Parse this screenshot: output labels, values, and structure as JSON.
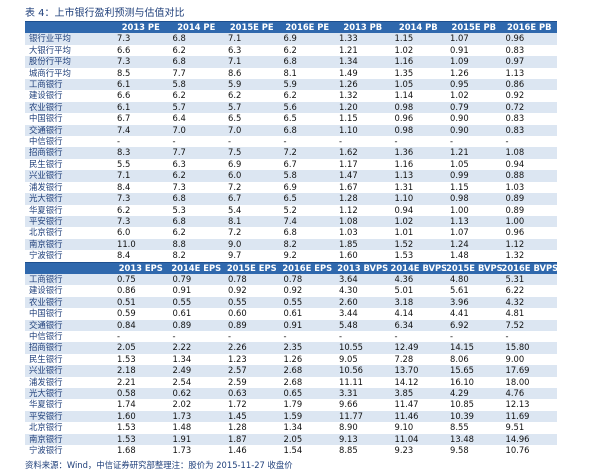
{
  "title": "表 4：上市银行盈利预测与估值对比",
  "tables": [
    {
      "header": [
        "",
        "2013 PE",
        "2014 PE",
        "2015E PE",
        "2016E PE",
        "2013 PB",
        "2014 PB",
        "2015E PB",
        "2016E PB"
      ],
      "rows": [
        [
          "银行业平均",
          "7.3",
          "6.8",
          "7.1",
          "6.9",
          "1.33",
          "1.15",
          "1.07",
          "0.96"
        ],
        [
          "大银行平均",
          "6.6",
          "6.2",
          "6.3",
          "6.2",
          "1.21",
          "1.02",
          "0.91",
          "0.83"
        ],
        [
          "股份行平均",
          "7.3",
          "6.8",
          "7.1",
          "6.8",
          "1.34",
          "1.16",
          "1.09",
          "0.97"
        ],
        [
          "城商行平均",
          "8.5",
          "7.7",
          "8.6",
          "8.1",
          "1.49",
          "1.35",
          "1.26",
          "1.13"
        ],
        [
          "工商银行",
          "6.1",
          "5.8",
          "5.9",
          "5.9",
          "1.26",
          "1.05",
          "0.95",
          "0.86"
        ],
        [
          "建设银行",
          "6.6",
          "6.2",
          "6.2",
          "6.2",
          "1.32",
          "1.14",
          "1.02",
          "0.92"
        ],
        [
          "农业银行",
          "6.1",
          "5.7",
          "5.7",
          "5.6",
          "1.20",
          "0.98",
          "0.79",
          "0.72"
        ],
        [
          "中国银行",
          "6.7",
          "6.4",
          "6.5",
          "6.5",
          "1.15",
          "0.96",
          "0.90",
          "0.83"
        ],
        [
          "交通银行",
          "7.4",
          "7.0",
          "7.0",
          "6.8",
          "1.10",
          "0.98",
          "0.90",
          "0.83"
        ],
        [
          "中信银行",
          "-",
          "-",
          "-",
          "-",
          "-",
          "-",
          "-",
          "-"
        ],
        [
          "招商银行",
          "8.3",
          "7.7",
          "7.5",
          "7.2",
          "1.62",
          "1.36",
          "1.21",
          "1.08"
        ],
        [
          "民生银行",
          "5.5",
          "6.3",
          "6.9",
          "6.7",
          "1.17",
          "1.16",
          "1.05",
          "0.94"
        ],
        [
          "兴业银行",
          "7.1",
          "6.2",
          "6.0",
          "5.8",
          "1.47",
          "1.13",
          "0.99",
          "0.88"
        ],
        [
          "浦发银行",
          "8.4",
          "7.3",
          "7.2",
          "6.9",
          "1.67",
          "1.31",
          "1.15",
          "1.03"
        ],
        [
          "光大银行",
          "7.3",
          "6.8",
          "6.7",
          "6.5",
          "1.28",
          "1.10",
          "0.98",
          "0.89"
        ],
        [
          "华夏银行",
          "6.2",
          "5.3",
          "5.4",
          "5.2",
          "1.12",
          "0.94",
          "1.00",
          "0.89"
        ],
        [
          "平安银行",
          "7.3",
          "6.8",
          "8.1",
          "7.4",
          "1.08",
          "1.02",
          "1.13",
          "1.00"
        ],
        [
          "北京银行",
          "6.0",
          "6.2",
          "7.2",
          "6.8",
          "1.03",
          "1.01",
          "1.07",
          "0.96"
        ],
        [
          "南京银行",
          "11.0",
          "8.8",
          "9.0",
          "8.2",
          "1.85",
          "1.52",
          "1.24",
          "1.12"
        ],
        [
          "宁波银行",
          "8.4",
          "8.2",
          "9.7",
          "9.2",
          "1.60",
          "1.53",
          "1.48",
          "1.32"
        ]
      ]
    },
    {
      "header": [
        "",
        "2013 EPS",
        "2014E EPS",
        "2015E EPS",
        "2016E EPS",
        "2013 BVPS",
        "2014E BVPS",
        "2015E BVPS",
        "2016E BVPS"
      ],
      "rows": [
        [
          "工商银行",
          "0.75",
          "0.79",
          "0.78",
          "0.78",
          "3.64",
          "4.36",
          "4.80",
          "5.31"
        ],
        [
          "建设银行",
          "0.86",
          "0.91",
          "0.92",
          "0.92",
          "4.30",
          "5.01",
          "5.61",
          "6.22"
        ],
        [
          "农业银行",
          "0.51",
          "0.55",
          "0.55",
          "0.55",
          "2.60",
          "3.18",
          "3.96",
          "4.32"
        ],
        [
          "中国银行",
          "0.59",
          "0.61",
          "0.60",
          "0.61",
          "3.44",
          "4.14",
          "4.41",
          "4.81"
        ],
        [
          "交通银行",
          "0.84",
          "0.89",
          "0.89",
          "0.91",
          "5.48",
          "6.34",
          "6.92",
          "7.52"
        ],
        [
          "中信银行",
          "-",
          "-",
          "-",
          "-",
          "-",
          "-",
          "-",
          "-"
        ],
        [
          "招商银行",
          "2.05",
          "2.22",
          "2.26",
          "2.35",
          "10.55",
          "12.49",
          "14.15",
          "15.80"
        ],
        [
          "民生银行",
          "1.53",
          "1.34",
          "1.23",
          "1.26",
          "9.05",
          "7.28",
          "8.06",
          "9.00"
        ],
        [
          "兴业银行",
          "2.18",
          "2.49",
          "2.57",
          "2.68",
          "10.56",
          "13.70",
          "15.65",
          "17.69"
        ],
        [
          "浦发银行",
          "2.21",
          "2.54",
          "2.59",
          "2.68",
          "11.11",
          "14.12",
          "16.10",
          "18.00"
        ],
        [
          "光大银行",
          "0.58",
          "0.62",
          "0.63",
          "0.65",
          "3.31",
          "3.85",
          "4.29",
          "4.76"
        ],
        [
          "华夏银行",
          "1.74",
          "2.02",
          "1.72",
          "1.79",
          "9.66",
          "11.47",
          "10.85",
          "12.13"
        ],
        [
          "平安银行",
          "1.60",
          "1.73",
          "1.45",
          "1.59",
          "11.77",
          "11.46",
          "10.39",
          "11.69"
        ],
        [
          "北京银行",
          "1.53",
          "1.48",
          "1.28",
          "1.34",
          "8.90",
          "9.10",
          "8.55",
          "9.51"
        ],
        [
          "南京银行",
          "1.53",
          "1.91",
          "1.87",
          "2.05",
          "9.13",
          "11.04",
          "13.48",
          "14.96"
        ],
        [
          "宁波银行",
          "1.68",
          "1.73",
          "1.46",
          "1.54",
          "8.85",
          "9.23",
          "9.58",
          "10.76"
        ]
      ]
    }
  ],
  "note": "资料来源：Wind，中信证券研究部整理注：股价为 2015-11-27 收盘价"
}
